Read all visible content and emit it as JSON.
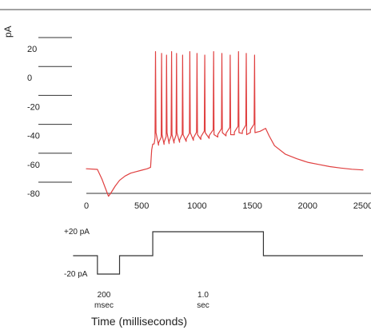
{
  "chart_data": [
    {
      "type": "line",
      "ylabel": "pA",
      "xlabel": "Time (milliseconds)",
      "xlim": [
        0,
        2500
      ],
      "ylim": [
        -80,
        28
      ],
      "x_ticks": [
        0,
        500,
        1000,
        1500,
        2000,
        2500
      ],
      "x_tick_labels": [
        "0",
        "500",
        "1000",
        "1500",
        "2000",
        "2500"
      ],
      "y_ticks": [
        20,
        0,
        -20,
        -40,
        -60,
        -80
      ],
      "y_tick_labels": [
        "20",
        "0",
        "-20",
        "-40",
        "-60",
        "-80"
      ],
      "grid": false,
      "legend": "none",
      "line_color": "#e04040",
      "series": [
        {
          "x": [
            0,
            100,
            140,
            180,
            200,
            220,
            260,
            300,
            350,
            400,
            450,
            500,
            550,
            580,
            585,
            590,
            600
          ],
          "values": [
            -63,
            -63.4,
            -70,
            -78,
            -82,
            -80,
            -75,
            -71,
            -68,
            -66,
            -65,
            -64,
            -63,
            -62,
            -56,
            -50,
            -46
          ]
        },
        {
          "x": [
            600,
            1620
          ],
          "spike_times": [
            625,
            680,
            725,
            770,
            815,
            870,
            935,
            1000,
            1070,
            1150,
            1225,
            1300,
            1375,
            1445,
            1520
          ],
          "spike_peak": 18,
          "trough": -38,
          "baseline_start": -46,
          "baseline_end": -35
        },
        {
          "x": [
            1620,
            1650,
            1700,
            1800,
            1900,
            2000,
            2100,
            2200,
            2300,
            2400,
            2500
          ],
          "values": [
            -35,
            -40,
            -47,
            -53,
            -56,
            -58.5,
            -60,
            -61.5,
            -62.5,
            -63.3,
            -63.8
          ]
        }
      ]
    },
    {
      "type": "line",
      "xlim": [
        0,
        2500
      ],
      "stimulus_levels": [
        {
          "label": "+20 pA",
          "value": 20
        },
        {
          "label": "-20 pA",
          "value": -20
        }
      ],
      "steps": [
        {
          "x": [
            -120,
            100
          ],
          "value": 0
        },
        {
          "x": [
            100,
            300
          ],
          "value": -20
        },
        {
          "x": [
            300,
            600
          ],
          "value": 0
        },
        {
          "x": [
            600,
            1600
          ],
          "value": 20
        },
        {
          "x": [
            1600,
            2500
          ],
          "value": 0
        }
      ],
      "annotations": [
        {
          "value": "200",
          "unit": "msec"
        },
        {
          "value": "1.0",
          "unit": "sec"
        }
      ]
    }
  ]
}
